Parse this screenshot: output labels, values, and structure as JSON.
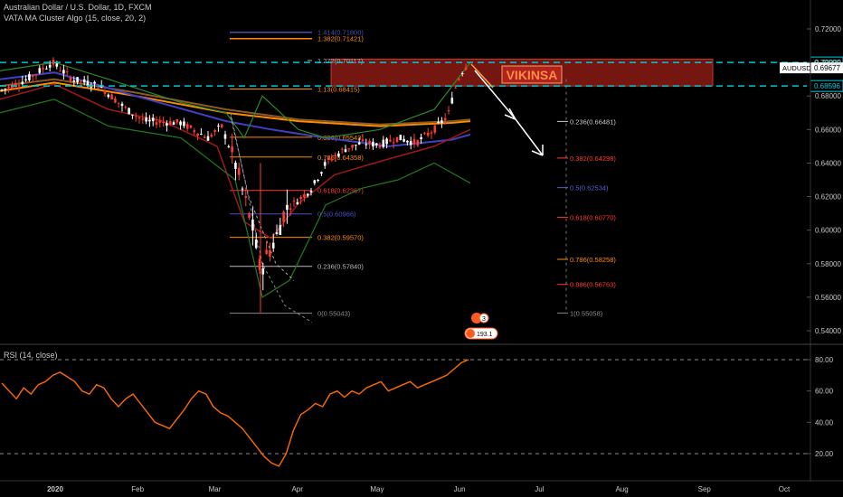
{
  "header": {
    "symbol_line": "Australian Dollar / U.S. Dollar, 1D, FXCM",
    "indicator_line": "VATA MA Cluster Algo (15, close, 20, 2)",
    "rsi_label": "RSI (14, close)"
  },
  "price_axis": {
    "ticks": [
      "0.72000",
      "0.70000",
      "0.68000",
      "0.66000",
      "0.64000",
      "0.62000",
      "0.60000",
      "0.58000",
      "0.56000",
      "0.54000"
    ],
    "current_label": "AUDUSD",
    "current_value": "0.69677",
    "level_top": "0.70000",
    "level_bottom": "0.68596"
  },
  "rsi_axis": {
    "ticks": [
      "80.00",
      "60.00",
      "40.00",
      "20.00"
    ]
  },
  "time_axis": {
    "ticks": [
      "2020",
      "Feb",
      "Mar",
      "Apr",
      "May",
      "Jun",
      "Jul",
      "Aug",
      "Sep",
      "Oct"
    ]
  },
  "annotation": {
    "zone_label": "VIKINSA"
  },
  "fib_left": [
    "1.414(0.71800)",
    "1.382(0.71421)",
    "1.272(0.70117)",
    "1.13(0.68415)",
    "0.886(0.65543)",
    "0.786(0.64358)",
    "0.618(0.62367)",
    "0.5(0.60966)",
    "0.382(0.59570)",
    "0.236(0.57840)",
    "0(0.55043)"
  ],
  "fib_right": [
    "0.236(0.66481)",
    "0.382(0.64298)",
    "0.5(0.62534)",
    "0.618(0.60770)",
    "0.786(0.58258)",
    "0.886(0.56763)",
    "1(0.55058)"
  ],
  "badges": {
    "earnings_count": "3",
    "pending_value": "193.1"
  },
  "colors": {
    "background": "#000000",
    "up_candle": "#ffffff",
    "down_candle": "#ff3b2f",
    "level_line": "#00c8d7",
    "zone_fill": "#8b1a14",
    "rsi_line": "#ff6a00"
  },
  "chart_data": [
    {
      "type": "candlestick",
      "symbol": "AUDUSD",
      "interval": "1D",
      "source": "FXCM",
      "ylim": [
        0.53,
        0.73
      ],
      "x_range": [
        "2019-12-01",
        "2020-10-15"
      ],
      "ohlc_weekly_approx": [
        [
          "2019-12-09",
          0.68,
          0.69,
          0.679,
          0.688
        ],
        [
          "2019-12-23",
          0.69,
          0.701,
          0.688,
          0.699
        ],
        [
          "2020-01-06",
          0.699,
          0.702,
          0.685,
          0.69
        ],
        [
          "2020-01-20",
          0.69,
          0.692,
          0.675,
          0.676
        ],
        [
          "2020-02-03",
          0.676,
          0.679,
          0.666,
          0.669
        ],
        [
          "2020-02-17",
          0.669,
          0.671,
          0.657,
          0.662
        ],
        [
          "2020-03-02",
          0.662,
          0.667,
          0.64,
          0.645
        ],
        [
          "2020-03-16",
          0.645,
          0.65,
          0.551,
          0.575
        ],
        [
          "2020-03-30",
          0.575,
          0.615,
          0.573,
          0.61
        ],
        [
          "2020-04-13",
          0.61,
          0.64,
          0.605,
          0.636
        ],
        [
          "2020-04-27",
          0.636,
          0.656,
          0.63,
          0.65
        ],
        [
          "2020-05-11",
          0.65,
          0.66,
          0.644,
          0.654
        ],
        [
          "2020-05-25",
          0.654,
          0.69,
          0.652,
          0.688
        ],
        [
          "2020-06-08",
          0.688,
          0.701,
          0.686,
          0.697
        ]
      ],
      "last_price": 0.69677,
      "horizontal_levels": [
        0.7,
        0.68596
      ],
      "supply_zone": [
        0.68596,
        0.702
      ],
      "fibonacci_retracement": {
        "low": 0.55043,
        "high": 0.70117,
        "levels": [
          [
            0,
            0.55043
          ],
          [
            0.236,
            0.5784
          ],
          [
            0.382,
            0.5957
          ],
          [
            0.5,
            0.60966
          ],
          [
            0.618,
            0.62367
          ],
          [
            0.786,
            0.64358
          ],
          [
            0.886,
            0.65543
          ],
          [
            1.13,
            0.68415
          ],
          [
            1.272,
            0.70117
          ],
          [
            1.382,
            0.71421
          ],
          [
            1.414,
            0.718
          ]
        ]
      },
      "projected_fibonacci": [
        [
          0.236,
          0.66481
        ],
        [
          0.382,
          0.64298
        ],
        [
          0.5,
          0.62534
        ],
        [
          0.618,
          0.6077
        ],
        [
          0.786,
          0.58258
        ],
        [
          0.886,
          0.56763
        ],
        [
          1,
          0.55058
        ]
      ]
    },
    {
      "type": "line",
      "name": "RSI (14, close)",
      "ylim": [
        0,
        100
      ],
      "levels": [
        80,
        20
      ],
      "x_range": [
        "2019-12-01",
        "2020-06-10"
      ],
      "values": [
        65,
        60,
        55,
        62,
        58,
        64,
        66,
        70,
        72,
        69,
        66,
        60,
        58,
        64,
        62,
        55,
        50,
        55,
        58,
        52,
        46,
        40,
        38,
        36,
        42,
        48,
        55,
        60,
        58,
        50,
        46,
        44,
        40,
        36,
        30,
        24,
        18,
        14,
        12,
        20,
        35,
        45,
        48,
        52,
        50,
        58,
        60,
        56,
        60,
        58,
        62,
        64,
        66,
        60,
        62,
        64,
        66,
        62,
        64,
        66,
        68,
        70,
        74,
        78,
        80
      ]
    }
  ]
}
